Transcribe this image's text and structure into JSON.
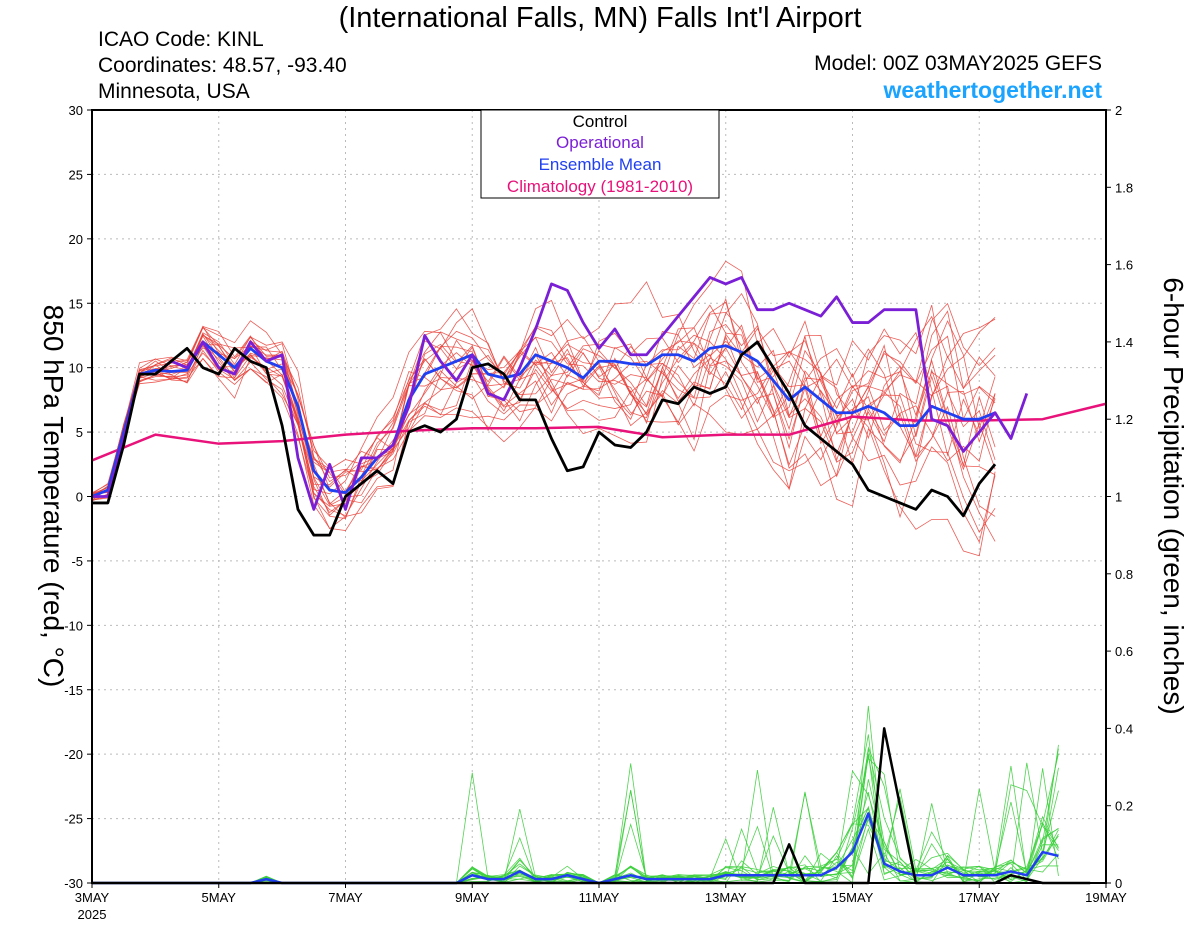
{
  "header": {
    "title": "(International Falls, MN) Falls Int'l Airport",
    "icao": "ICAO Code: KINL",
    "coords": "Coordinates: 48.57, -93.40",
    "region": "Minnesota, USA",
    "model": "Model: 00Z 03MAY2025 GEFS",
    "site": "weathertogether.net"
  },
  "colors": {
    "members_temp": "#e8413a",
    "members_precip": "#3ccf3c",
    "control": "#000000",
    "operational": "#7b1fd6",
    "mean": "#1f3ff0",
    "climatology": "#e8127a",
    "site": "#1aa3ff"
  },
  "chart_data": {
    "type": "line",
    "xlabel": "",
    "ylabel": "850 hPa Temperature (red, °C)",
    "y2label": "6-hour Precipitation (green, inches)",
    "xlim": [
      0,
      64
    ],
    "ylim": [
      -30,
      30
    ],
    "y2lim": [
      0,
      2
    ],
    "grid": true,
    "legend_position": "top-center",
    "x_ticks": [
      {
        "x": 0,
        "label": "3MAY",
        "sub": "2025"
      },
      {
        "x": 8,
        "label": "5MAY"
      },
      {
        "x": 16,
        "label": "7MAY"
      },
      {
        "x": 24,
        "label": "9MAY"
      },
      {
        "x": 32,
        "label": "11MAY"
      },
      {
        "x": 40,
        "label": "13MAY"
      },
      {
        "x": 48,
        "label": "15MAY"
      },
      {
        "x": 56,
        "label": "17MAY"
      },
      {
        "x": 64,
        "label": "19MAY"
      }
    ],
    "y_ticks": [
      "30",
      "25",
      "20",
      "15",
      "10",
      "5",
      "0",
      "-5",
      "-10",
      "-15",
      "-20",
      "-25",
      "-30"
    ],
    "y2_ticks": [
      "2",
      "1.8",
      "1.6",
      "1.4",
      "1.2",
      "1",
      "0.8",
      "0.6",
      "0.4",
      "0.2",
      "0"
    ],
    "legend": [
      "Control",
      "Operational",
      "Ensemble Mean",
      "Climatology (1981-2010)"
    ],
    "series": [
      {
        "name": "Control",
        "axis": "temp",
        "values": [
          -0.5,
          -0.5,
          4,
          9.5,
          9.5,
          10.5,
          11.5,
          10,
          9.5,
          11.5,
          10.5,
          10,
          5.5,
          -1,
          -3,
          -3,
          0,
          1,
          2,
          1,
          5,
          5.5,
          5,
          6,
          10,
          10.3,
          9.5,
          7.5,
          7.5,
          4.5,
          2,
          2.3,
          5,
          4,
          3.8,
          5,
          7.5,
          7.2,
          8.5,
          8,
          8.5,
          11,
          12,
          10,
          8,
          5.5,
          4.5,
          3.5,
          2.5,
          0.5,
          0,
          -0.5,
          -1,
          0.5,
          0,
          -1.5,
          1,
          2.5
        ]
      },
      {
        "name": "Operational",
        "axis": "temp",
        "values": [
          0,
          0,
          4.5,
          9.5,
          9.5,
          10.5,
          10,
          12,
          10,
          9.5,
          12,
          10.5,
          11,
          3,
          -1,
          2.5,
          -1,
          3,
          3,
          4,
          7,
          12.5,
          10.5,
          9,
          11,
          8,
          7.5,
          10,
          13,
          16.5,
          16,
          13.5,
          11.5,
          13,
          11,
          11,
          12.5,
          14,
          15.5,
          17,
          16.5,
          17,
          14.5,
          14.5,
          15,
          14.5,
          14,
          15.5,
          13.5,
          13.5,
          14.5,
          14.5,
          14.5,
          6,
          5.5,
          3.5,
          5,
          6.5,
          4.5,
          8
        ]
      },
      {
        "name": "Ensemble Mean",
        "axis": "temp",
        "values": [
          0,
          0.5,
          5,
          9.5,
          9.8,
          9.7,
          9.8,
          12,
          11,
          10,
          11.5,
          10.5,
          10,
          7,
          2,
          0.5,
          0.3,
          1.5,
          3,
          4,
          7.5,
          9.5,
          10,
          10.5,
          11,
          9.5,
          9.2,
          9.5,
          11,
          10.5,
          10,
          9.2,
          10.5,
          10.5,
          10.3,
          10.2,
          11,
          11,
          10.5,
          11.5,
          11.7,
          11.2,
          10.5,
          9,
          7.5,
          8.5,
          7.5,
          6.5,
          6.5,
          7,
          6.5,
          5.5,
          5.5,
          7,
          6.5,
          6,
          6,
          6.5
        ]
      },
      {
        "name": "Climatology (1981-2010)",
        "axis": "temp",
        "values": [
          2.8,
          4.8,
          4.1,
          4.3,
          4.8,
          5.1,
          5.3,
          5.3,
          5.4,
          4.6,
          4.8,
          4.8,
          6.2,
          5.9,
          5.9,
          6,
          7.2
        ]
      },
      {
        "name": "Control precip",
        "axis": "precip",
        "values": [
          0,
          0,
          0,
          0,
          0,
          0,
          0,
          0,
          0,
          0,
          0,
          0,
          0,
          0,
          0,
          0,
          0,
          0,
          0,
          0,
          0,
          0,
          0,
          0,
          0,
          0,
          0,
          0,
          0,
          0,
          0,
          0,
          0,
          0,
          0,
          0,
          0,
          0,
          0,
          0,
          0,
          0,
          0,
          0,
          0.1,
          0,
          0,
          0,
          0,
          0,
          0.4,
          0.2,
          0,
          0,
          0,
          0,
          0,
          0,
          0.02,
          0.01,
          0,
          0,
          0,
          0
        ]
      },
      {
        "name": "Mean precip",
        "axis": "precip",
        "values": [
          0,
          0,
          0,
          0,
          0,
          0,
          0,
          0,
          0,
          0,
          0,
          0.01,
          0,
          0,
          0,
          0,
          0,
          0,
          0,
          0,
          0,
          0,
          0,
          0,
          0.02,
          0.01,
          0.01,
          0.03,
          0.01,
          0.01,
          0.02,
          0.01,
          0,
          0.01,
          0.02,
          0.01,
          0.01,
          0.01,
          0.01,
          0.01,
          0.02,
          0.02,
          0.02,
          0.02,
          0.02,
          0.02,
          0.02,
          0.04,
          0.08,
          0.18,
          0.05,
          0.03,
          0.02,
          0.02,
          0.04,
          0.02,
          0.02,
          0.02,
          0.03,
          0.02,
          0.08,
          0.07
        ]
      }
    ]
  }
}
